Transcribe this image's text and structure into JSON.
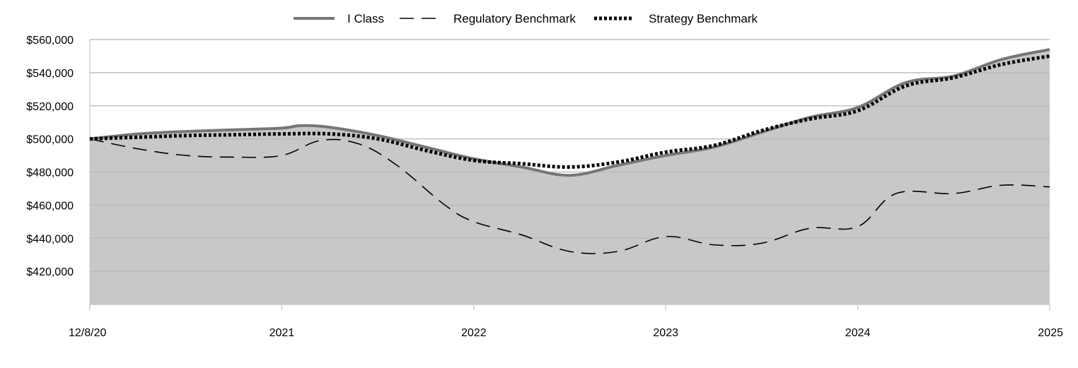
{
  "chart_data": {
    "type": "area",
    "x_categories": [
      "12/8/20",
      "2021",
      "2022",
      "2023",
      "2024",
      "2025"
    ],
    "ylim": [
      400000,
      560000
    ],
    "y_ticks": [
      420000,
      440000,
      460000,
      480000,
      500000,
      520000,
      540000,
      560000
    ],
    "y_tick_labels": [
      "$420,000",
      "$440,000",
      "$460,000",
      "$480,000",
      "$500,000",
      "$520,000",
      "$540,000",
      "$560,000"
    ],
    "grid": true,
    "legend_position": "top-center",
    "series": [
      {
        "name": "I Class",
        "style": "solid-filled",
        "color": "#767676",
        "fill": "#c8c8c8",
        "x": [
          0,
          0.25,
          0.5,
          0.75,
          1.0,
          1.1,
          1.25,
          1.5,
          1.75,
          2.0,
          2.25,
          2.5,
          2.75,
          3.0,
          3.25,
          3.5,
          3.75,
          4.0,
          4.25,
          4.5,
          4.75,
          5.0
        ],
        "values": [
          500000,
          503000,
          504500,
          505500,
          506500,
          508000,
          507000,
          502000,
          495000,
          488000,
          483000,
          478000,
          484000,
          490000,
          495000,
          504000,
          513000,
          519000,
          534000,
          538000,
          548000,
          554000
        ]
      },
      {
        "name": "Regulatory Benchmark",
        "style": "long-dash",
        "color": "#000000",
        "x": [
          0,
          0.25,
          0.5,
          0.75,
          1.0,
          1.2,
          1.4,
          1.6,
          1.85,
          2.0,
          2.25,
          2.5,
          2.75,
          3.0,
          3.25,
          3.5,
          3.75,
          4.0,
          4.2,
          4.5,
          4.75,
          5.0
        ],
        "values": [
          500000,
          494000,
          490000,
          489000,
          490000,
          499000,
          497000,
          484000,
          460000,
          450000,
          442000,
          432000,
          432000,
          441000,
          436000,
          437000,
          446000,
          447000,
          467000,
          467000,
          472000,
          471000
        ]
      },
      {
        "name": "Strategy Benchmark",
        "style": "dotted",
        "color": "#000000",
        "x": [
          0,
          0.25,
          0.5,
          0.75,
          1.0,
          1.25,
          1.5,
          1.75,
          2.0,
          2.25,
          2.5,
          2.75,
          3.0,
          3.25,
          3.5,
          3.75,
          4.0,
          4.25,
          4.5,
          4.75,
          5.0
        ],
        "values": [
          500000,
          501000,
          502000,
          502500,
          503000,
          503000,
          500000,
          493000,
          487000,
          485000,
          483000,
          486000,
          492000,
          496000,
          505000,
          512000,
          517000,
          532000,
          537000,
          545000,
          550000
        ]
      }
    ]
  }
}
